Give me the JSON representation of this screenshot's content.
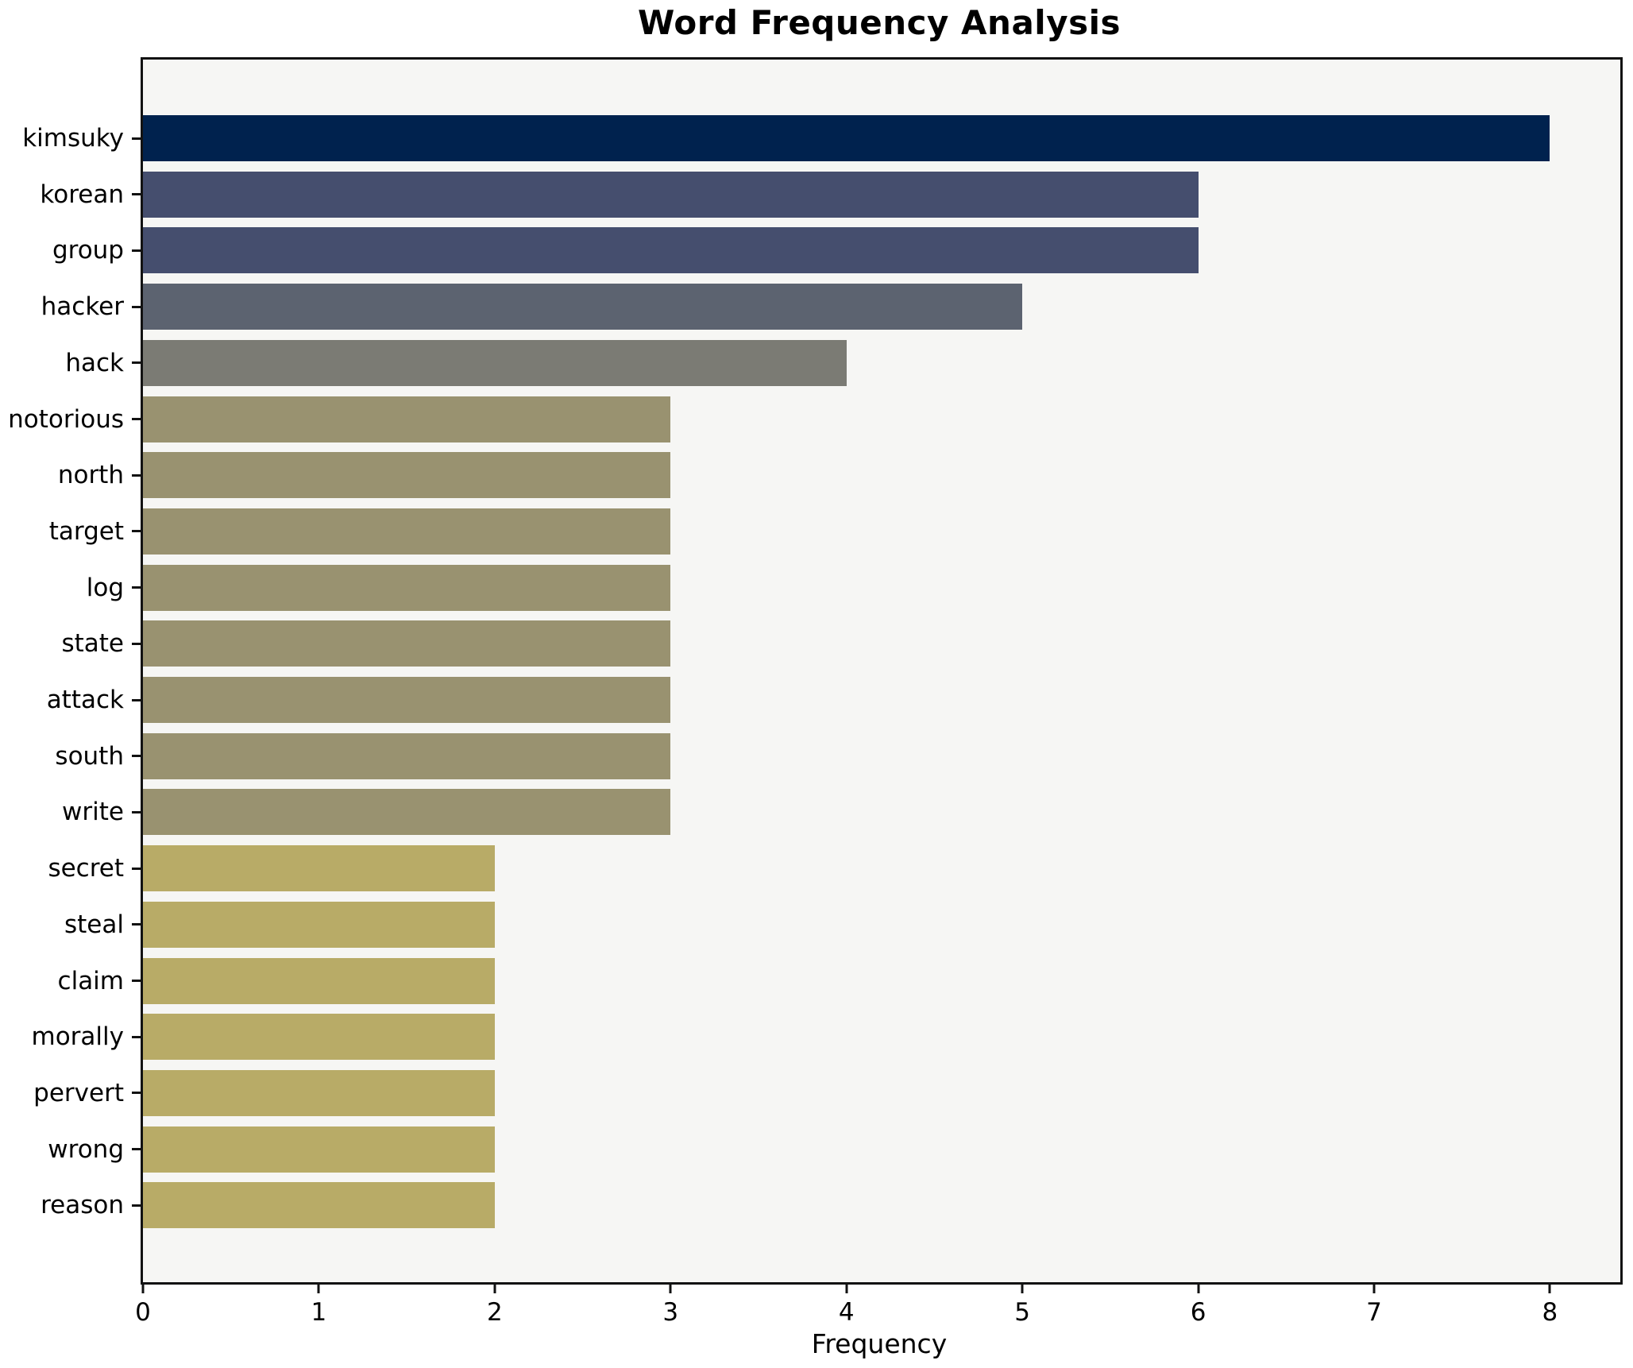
{
  "chart_data": {
    "type": "bar",
    "orientation": "horizontal",
    "title": "Word Frequency Analysis",
    "xlabel": "Frequency",
    "ylabel": "",
    "categories": [
      "kimsuky",
      "korean",
      "group",
      "hacker",
      "hack",
      "notorious",
      "north",
      "target",
      "log",
      "state",
      "attack",
      "south",
      "write",
      "secret",
      "steal",
      "claim",
      "morally",
      "pervert",
      "wrong",
      "reason"
    ],
    "values": [
      8,
      6,
      6,
      5,
      4,
      3,
      3,
      3,
      3,
      3,
      3,
      3,
      3,
      2,
      2,
      2,
      2,
      2,
      2,
      2
    ],
    "bar_colors": [
      "#00224e",
      "#454e6e",
      "#454e6e",
      "#5c6370",
      "#7b7b74",
      "#999270",
      "#999270",
      "#999270",
      "#999270",
      "#999270",
      "#999270",
      "#999270",
      "#999270",
      "#b8ab67",
      "#b8ab67",
      "#b8ab67",
      "#b8ab67",
      "#b8ab67",
      "#b8ab67",
      "#b8ab67"
    ],
    "x_ticks": [
      "0",
      "1",
      "2",
      "3",
      "4",
      "5",
      "6",
      "7",
      "8"
    ],
    "xlim": [
      0,
      8.4
    ],
    "grid": false,
    "legend": null,
    "plot_background": "#f6f6f4",
    "figure_background": "#ffffff",
    "spine_color": "#121212"
  }
}
